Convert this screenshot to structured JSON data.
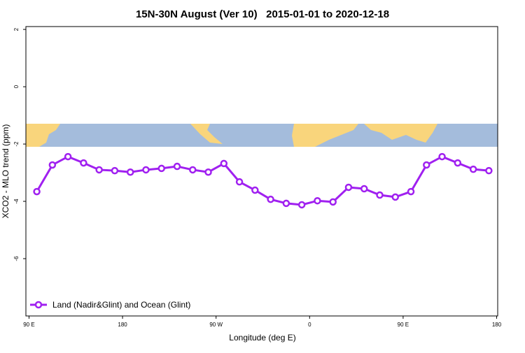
{
  "chart_data": {
    "type": "line",
    "title": "15N-30N August (Ver 10)   2015-01-01 to 2020-12-18",
    "x_label": "Longitude (deg E)",
    "y_label": "XCO2 - MLO trend (ppm)",
    "x": [
      97.5,
      112.5,
      127.5,
      142.5,
      157.5,
      172.5,
      187.5,
      202.5,
      217.5,
      232.5,
      247.5,
      262.5,
      277.5,
      292.5,
      307.5,
      322.5,
      337.5,
      352.5,
      367.5,
      382.5,
      397.5,
      412.5,
      427.5,
      442.5,
      457.5,
      472.5,
      487.5,
      502.5,
      517.5,
      532.5
    ],
    "series": [
      {
        "name": "Land (Nadir&Glint) and Ocean (Glint)",
        "color": "#a020f0",
        "values": [
          -3.66,
          -2.73,
          -2.44,
          -2.66,
          -2.9,
          -2.93,
          -2.98,
          -2.9,
          -2.85,
          -2.78,
          -2.9,
          -2.98,
          -2.68,
          -3.32,
          -3.61,
          -3.93,
          -4.07,
          -4.12,
          -3.98,
          -4.02,
          -3.51,
          -3.56,
          -3.78,
          -3.85,
          -3.66,
          -2.73,
          -2.44,
          -2.66,
          -2.88,
          -2.93
        ]
      }
    ],
    "xlim": [
      87,
      541
    ],
    "xticks": [
      {
        "value": 90,
        "label": "90 E"
      },
      180,
      {
        "value": 270,
        "label": "90 W"
      },
      {
        "value": 360,
        "label": "0"
      },
      {
        "value": 450,
        "label": "90 E"
      },
      {
        "value": 540,
        "label": "180"
      }
    ],
    "ylim": [
      -8,
      2.1
    ],
    "yticks": [
      2,
      0,
      -2,
      -4,
      -6
    ],
    "legend_position": "bottom-left"
  }
}
